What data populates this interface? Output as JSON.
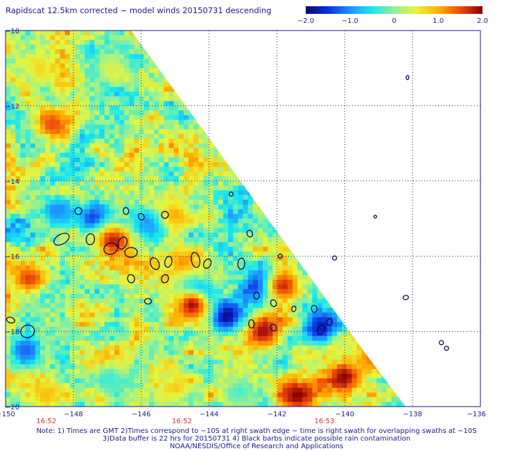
{
  "title": "Rapidscat 12.5km corrected − model winds 20150731 descending",
  "colorbar": {
    "min": -2.0,
    "max": 2.0,
    "tick_labels": [
      "−2.0",
      "−1.0",
      "0",
      "1.0",
      "2.0"
    ],
    "tick_values": [
      -2.0,
      -1.0,
      0,
      1.0,
      2.0
    ],
    "colors": [
      "#08086b",
      "#0a2ee0",
      "#1e90ff",
      "#16e8f0",
      "#8ff09a",
      "#e8f53c",
      "#ffb000",
      "#f04a0a",
      "#8b0000"
    ]
  },
  "chart_data": {
    "type": "heatmap",
    "title": "Rapidscat 12.5km corrected − model winds 20150731 descending",
    "xlim": [
      -150,
      -136
    ],
    "ylim": [
      -20,
      -10
    ],
    "x_ticks": [
      "−150",
      "−148",
      "−146",
      "−144",
      "−142",
      "−140",
      "−138",
      "−136"
    ],
    "x_tick_values": [
      -150,
      -148,
      -146,
      -144,
      -142,
      -140,
      -138,
      -136
    ],
    "y_ticks": [
      "−10",
      "−12",
      "−14",
      "−16",
      "−18",
      "−20"
    ],
    "y_tick_values": [
      -10,
      -12,
      -14,
      -16,
      -18,
      -20
    ],
    "grid": true,
    "time_labels": [
      {
        "text": "16:52",
        "lon": -148.8
      },
      {
        "text": "16:52",
        "lon": -144.8
      },
      {
        "text": "16:53",
        "lon": -140.6
      }
    ],
    "swath_edge": [
      [
        -146.3,
        -10.0
      ],
      [
        -139.3,
        -18.7
      ],
      [
        -138.2,
        -20.0
      ]
    ],
    "value_range": [
      -2.0,
      2.0
    ],
    "regions": [
      {
        "lon": -148.5,
        "lat": -14.8,
        "value": -1.0
      },
      {
        "lon": -147.4,
        "lat": -15.0,
        "value": -1.5
      },
      {
        "lon": -146.8,
        "lat": -15.6,
        "value": 1.8
      },
      {
        "lon": -145.6,
        "lat": -15.1,
        "value": -1.2
      },
      {
        "lon": -145.0,
        "lat": -14.9,
        "value": 1.0
      },
      {
        "lon": -144.8,
        "lat": -16.2,
        "value": 1.2
      },
      {
        "lon": -144.4,
        "lat": -17.0,
        "value": -1.8
      },
      {
        "lon": -143.5,
        "lat": -17.6,
        "value": -2.0
      },
      {
        "lon": -144.5,
        "lat": -17.3,
        "value": 1.9
      },
      {
        "lon": -142.5,
        "lat": -16.8,
        "value": -1.8
      },
      {
        "lon": -141.8,
        "lat": -16.8,
        "value": 1.7
      },
      {
        "lon": -142.4,
        "lat": -18.0,
        "value": 1.9
      },
      {
        "lon": -140.7,
        "lat": -17.9,
        "value": -1.7
      },
      {
        "lon": -140.0,
        "lat": -19.2,
        "value": 2.0
      },
      {
        "lon": -141.4,
        "lat": -19.7,
        "value": 2.0
      },
      {
        "lon": -139.2,
        "lat": -18.7,
        "value": 1.3
      },
      {
        "lon": -149.3,
        "lat": -16.6,
        "value": 1.6
      },
      {
        "lon": -149.4,
        "lat": -18.5,
        "value": -1.2
      },
      {
        "lon": -148.6,
        "lat": -12.5,
        "value": 1.5
      },
      {
        "lon": -149.0,
        "lat": -11.0,
        "value": 0.7
      },
      {
        "lon": -146.9,
        "lat": -11.0,
        "value": 0.4
      },
      {
        "lon": -148.8,
        "lat": -19.7,
        "value": 0.9
      },
      {
        "lon": -146.9,
        "lat": -19.3,
        "value": -0.3
      },
      {
        "lon": -145.0,
        "lat": -19.5,
        "value": 0.8
      },
      {
        "lon": -143.1,
        "lat": -19.6,
        "value": -0.3
      }
    ]
  },
  "notes": {
    "line1": "Note: 1) Times are GMT 2)Times correspond to −10S at right swath edge − time is right swath for overlapping swaths at −10S",
    "line2": "3)Data buffer is 22 hrs for 20150731 4) Black barbs indicate possible rain contamination",
    "line3": "NOAA/NESDIS/Office of Research and Applications"
  }
}
